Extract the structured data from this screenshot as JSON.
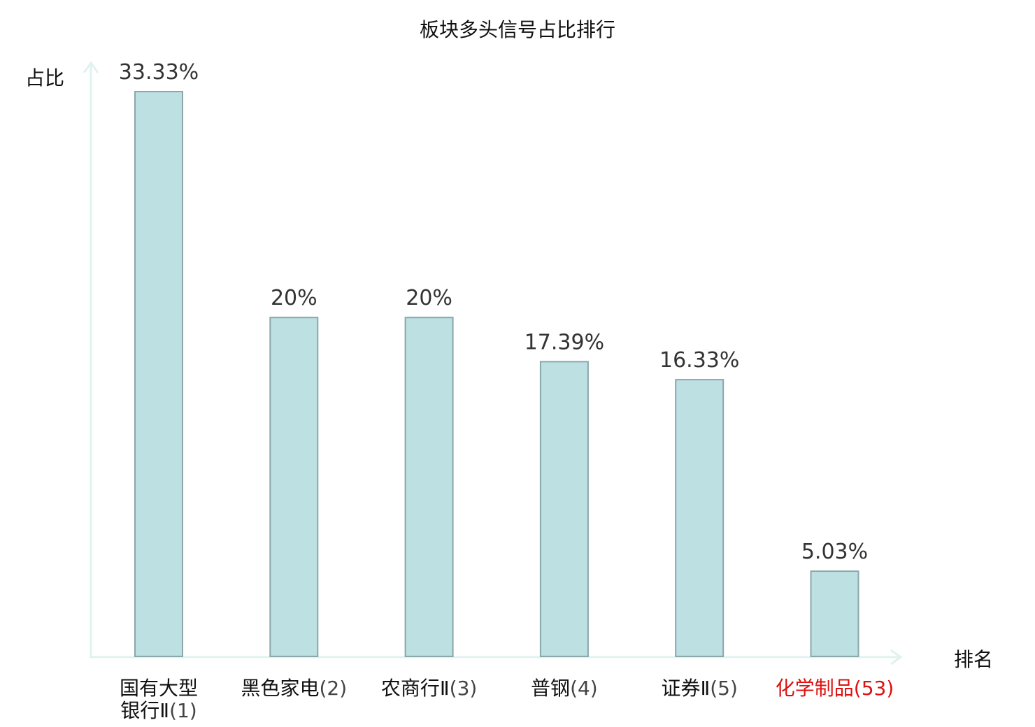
{
  "chart_data": {
    "type": "bar",
    "title": "板块多头信号占比排行",
    "ylabel": "占比",
    "xlabel": "排名",
    "ylim": [
      0,
      35
    ],
    "grid": false,
    "categories": [
      {
        "name": [
          "国有大型",
          "银行Ⅱ"
        ],
        "rank": "(1)",
        "highlight": false
      },
      {
        "name": [
          "黑色家电"
        ],
        "rank": "(2)",
        "highlight": false
      },
      {
        "name": [
          "农商行Ⅱ"
        ],
        "rank": "(3)",
        "highlight": false
      },
      {
        "name": [
          "普钢"
        ],
        "rank": "(4)",
        "highlight": false
      },
      {
        "name": [
          "证券Ⅱ"
        ],
        "rank": "(5)",
        "highlight": false
      },
      {
        "name": [
          "化学制品"
        ],
        "rank": "(53)",
        "highlight": true
      }
    ],
    "values": [
      33.33,
      20,
      20,
      17.39,
      16.33,
      5.03
    ],
    "value_labels": [
      "33.33%",
      "20%",
      "20%",
      "17.39%",
      "16.33%",
      "5.03%"
    ],
    "colors": {
      "bar_fill": "#bde0e3",
      "bar_stroke": "#8aa7aa",
      "axis": "#e0f2ef",
      "text": "#333333",
      "label": "#111111",
      "rank": "#444444",
      "highlight": "#dd1111"
    }
  }
}
